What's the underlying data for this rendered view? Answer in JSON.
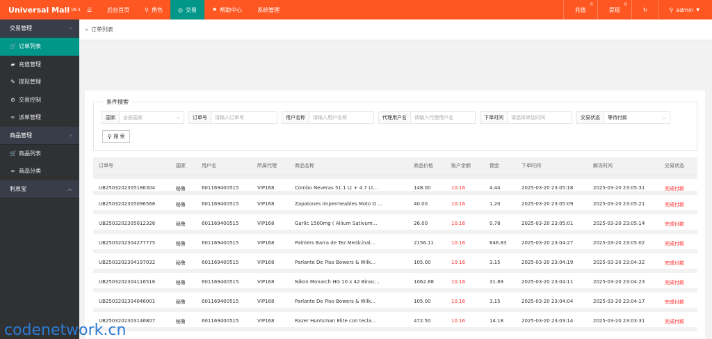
{
  "app": {
    "title": "Universal Mall",
    "version": "V8.3"
  },
  "nav": [
    {
      "icon": "menu-icon",
      "glyph": "☰",
      "label": ""
    },
    {
      "icon": "",
      "glyph": "",
      "label": "后台首页"
    },
    {
      "icon": "user-icon",
      "glyph": "⚲",
      "label": "角色"
    },
    {
      "icon": "coin-icon",
      "glyph": "◎",
      "label": "交易"
    },
    {
      "icon": "flag-icon",
      "glyph": "⚑",
      "label": "帮助中心"
    },
    {
      "icon": "",
      "glyph": "",
      "label": "系统管理"
    }
  ],
  "topright": {
    "recharge_label": "充值",
    "recharge_count": "0",
    "withdraw_label": "提现",
    "withdraw_count": "0",
    "refresh_glyph": "↻",
    "user_label": "admin"
  },
  "sidebar": {
    "groups": [
      {
        "label": "交易管理",
        "chev": "⌵",
        "items": [
          {
            "glyph": "🛒",
            "label": "订单列表",
            "active": true
          },
          {
            "glyph": "▰",
            "label": "充值管理"
          },
          {
            "glyph": "✎",
            "label": "提现管理"
          },
          {
            "glyph": "⊘",
            "label": "交易控制"
          },
          {
            "glyph": "∞",
            "label": "派单管理"
          }
        ]
      },
      {
        "label": "商品管理",
        "chev": "⌵",
        "items": [
          {
            "glyph": "🛒",
            "label": "商品列表"
          },
          {
            "glyph": "∞",
            "label": "商品分类"
          }
        ]
      },
      {
        "label": "利息宝",
        "chev": "︿",
        "items": []
      }
    ]
  },
  "breadcrumb": {
    "glyph": "»",
    "label": "订单列表"
  },
  "search": {
    "legend": "条件搜索",
    "fields": [
      {
        "label": "国家",
        "value": "全部国家",
        "dropdown": true,
        "width": 94
      },
      {
        "label": "订单号",
        "value": "请输入订单号",
        "width": 96
      },
      {
        "label": "用户名称",
        "value": "请输入用户名称",
        "width": 94
      },
      {
        "label": "代理用户名",
        "value": "请输入代理用户名",
        "width": 94
      },
      {
        "label": "下单时间",
        "value": "请选择添加时间",
        "width": 94
      },
      {
        "label": "交易状态",
        "value": "等待付款",
        "dropdown": true,
        "width": 96,
        "dark": true
      }
    ],
    "button_label": "搜 索"
  },
  "table": {
    "headers": [
      "订单号",
      "国家",
      "用户名",
      "所属代理",
      "商品名称",
      "商品价格",
      "账户余额",
      "佣金",
      "下单时间",
      "解冻时间",
      "交易状态"
    ],
    "rows": [
      [
        "UB2503202305186304",
        "秘鲁",
        "601169400515",
        "VIP168",
        "Combo Neveras 51.1 Lt + 4.7 Lt...",
        "148.00",
        "10.16",
        "4.44",
        "2025-03-20 23:05:18",
        "2025-03-20 23:05:31",
        "完成付款"
      ],
      [
        "UB2503202305096568",
        "秘鲁",
        "601169400515",
        "VIP168",
        "Zapatones Impermeables Moto O ...",
        "40.00",
        "10.16",
        "1.20",
        "2025-03-20 23:05:09",
        "2025-03-20 23:05:21",
        "完成付款"
      ],
      [
        "UB2503202305012326",
        "秘鲁",
        "601169400515",
        "VIP168",
        "Garlic 1500mg ( Allium Sativum...",
        "26.00",
        "10.16",
        "0.78",
        "2025-03-20 23:05:01",
        "2025-03-20 23:05:14",
        "完成付款"
      ],
      [
        "UB2503202304277775",
        "秘鲁",
        "601169400515",
        "VIP168",
        "Palmers Barra de Tez Medicinal...",
        "2156.11",
        "10.16",
        "646.83",
        "2025-03-20 23:04:27",
        "2025-03-20 23:05:02",
        "完成付款"
      ],
      [
        "UB2503202304197032",
        "秘鲁",
        "601169400515",
        "VIP168",
        "Parlante De Piso Bowers & Wilk...",
        "105.00",
        "10.16",
        "3.15",
        "2025-03-20 23:04:19",
        "2025-03-20 23:04:32",
        "完成付款"
      ],
      [
        "UB2503202304116516",
        "秘鲁",
        "601169400515",
        "VIP168",
        "Nikon Monarch HG 10 x 42 Binoc...",
        "1062.88",
        "10.16",
        "31.89",
        "2025-03-20 23:04:11",
        "2025-03-20 23:04:23",
        "完成付款"
      ],
      [
        "UB2503202304046001",
        "秘鲁",
        "601169400515",
        "VIP168",
        "Parlante De Piso Bowers & Wilk...",
        "105.00",
        "10.16",
        "3.15",
        "2025-03-20 23:04:04",
        "2025-03-20 23:04:17",
        "完成付款"
      ],
      [
        "UB2503202303146807",
        "秘鲁",
        "601169400515",
        "VIP168",
        "Razer Huntsman Elite con tecla...",
        "472.50",
        "10.16",
        "14.18",
        "2025-03-20 23:03:14",
        "2025-03-20 23:03:31",
        "完成付款"
      ]
    ]
  },
  "watermark": "codenetwork.cn",
  "colors": {
    "topbar": "#ff5722",
    "active": "#009688",
    "sidebar": "#2f3133",
    "status": "#ff2a2a"
  }
}
